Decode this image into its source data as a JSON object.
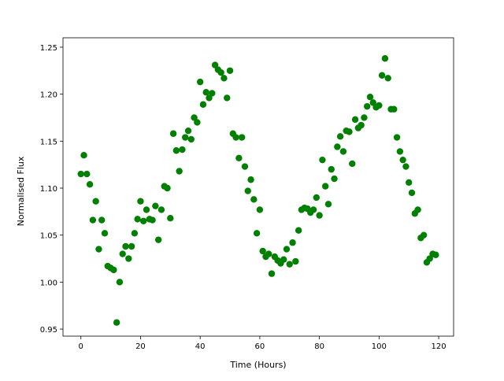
{
  "chart_data": {
    "type": "scatter",
    "x_label": "Time (Hours)",
    "y_label": "Normalised Flux",
    "color": "#008000",
    "x": [
      0,
      1,
      2,
      3,
      4,
      5,
      6,
      7,
      8,
      9,
      10,
      11,
      12,
      13,
      14,
      15,
      16,
      17,
      18,
      19,
      20,
      21,
      22,
      23,
      24,
      25,
      26,
      27,
      28,
      29,
      30,
      31,
      32,
      33,
      34,
      35,
      36,
      37,
      38,
      39,
      40,
      41,
      42,
      43,
      44,
      45,
      46,
      47,
      48,
      49,
      50,
      51,
      52,
      53,
      54,
      55,
      56,
      57,
      58,
      59,
      60,
      61,
      62,
      63,
      64,
      65,
      66,
      67,
      68,
      69,
      70,
      71,
      72,
      73,
      74,
      75,
      76,
      77,
      78,
      79,
      80,
      81,
      82,
      83,
      84,
      85,
      86,
      87,
      88,
      89,
      90,
      91,
      92,
      93,
      94,
      95,
      96,
      97,
      98,
      99,
      100,
      101,
      102,
      103,
      104,
      105,
      106,
      107,
      108,
      109,
      110,
      111,
      112,
      113,
      114,
      115,
      116,
      117,
      118,
      119
    ],
    "values": [
      1.115,
      1.135,
      1.115,
      1.104,
      1.066,
      1.086,
      1.035,
      1.066,
      1.052,
      1.017,
      1.015,
      1.013,
      0.957,
      1.0,
      1.03,
      1.038,
      1.025,
      1.038,
      1.052,
      1.067,
      1.086,
      1.065,
      1.077,
      1.067,
      1.066,
      1.081,
      1.045,
      1.077,
      1.102,
      1.1,
      1.068,
      1.158,
      1.14,
      1.118,
      1.141,
      1.154,
      1.161,
      1.152,
      1.175,
      1.17,
      1.213,
      1.189,
      1.202,
      1.196,
      1.201,
      1.231,
      1.226,
      1.223,
      1.217,
      1.196,
      1.225,
      1.158,
      1.154,
      1.132,
      1.154,
      1.123,
      1.097,
      1.109,
      1.088,
      1.052,
      1.077,
      1.033,
      1.027,
      1.03,
      1.009,
      1.027,
      1.023,
      1.02,
      1.024,
      1.035,
      1.019,
      1.042,
      1.022,
      1.055,
      1.077,
      1.079,
      1.078,
      1.074,
      1.077,
      1.09,
      1.071,
      1.13,
      1.102,
      1.083,
      1.12,
      1.11,
      1.144,
      1.155,
      1.139,
      1.161,
      1.16,
      1.126,
      1.173,
      1.164,
      1.167,
      1.175,
      1.187,
      1.197,
      1.191,
      1.186,
      1.188,
      1.22,
      1.238,
      1.217,
      1.184,
      1.184,
      1.154,
      1.139,
      1.13,
      1.123,
      1.106,
      1.095,
      1.073,
      1.077,
      1.047,
      1.05,
      1.021,
      1.025,
      1.03,
      1.029
    ],
    "xlim": [
      -6,
      125
    ],
    "ylim": [
      0.9425,
      1.26
    ],
    "xticks": [
      0,
      20,
      40,
      60,
      80,
      100,
      120
    ],
    "yticks": [
      0.95,
      {
        "value": 1,
        "label": "1.00"
      },
      1.05,
      {
        "value": 1.1,
        "label": "1.10"
      },
      1.15,
      {
        "value": 1.2,
        "label": "1.20"
      },
      1.25
    ]
  }
}
